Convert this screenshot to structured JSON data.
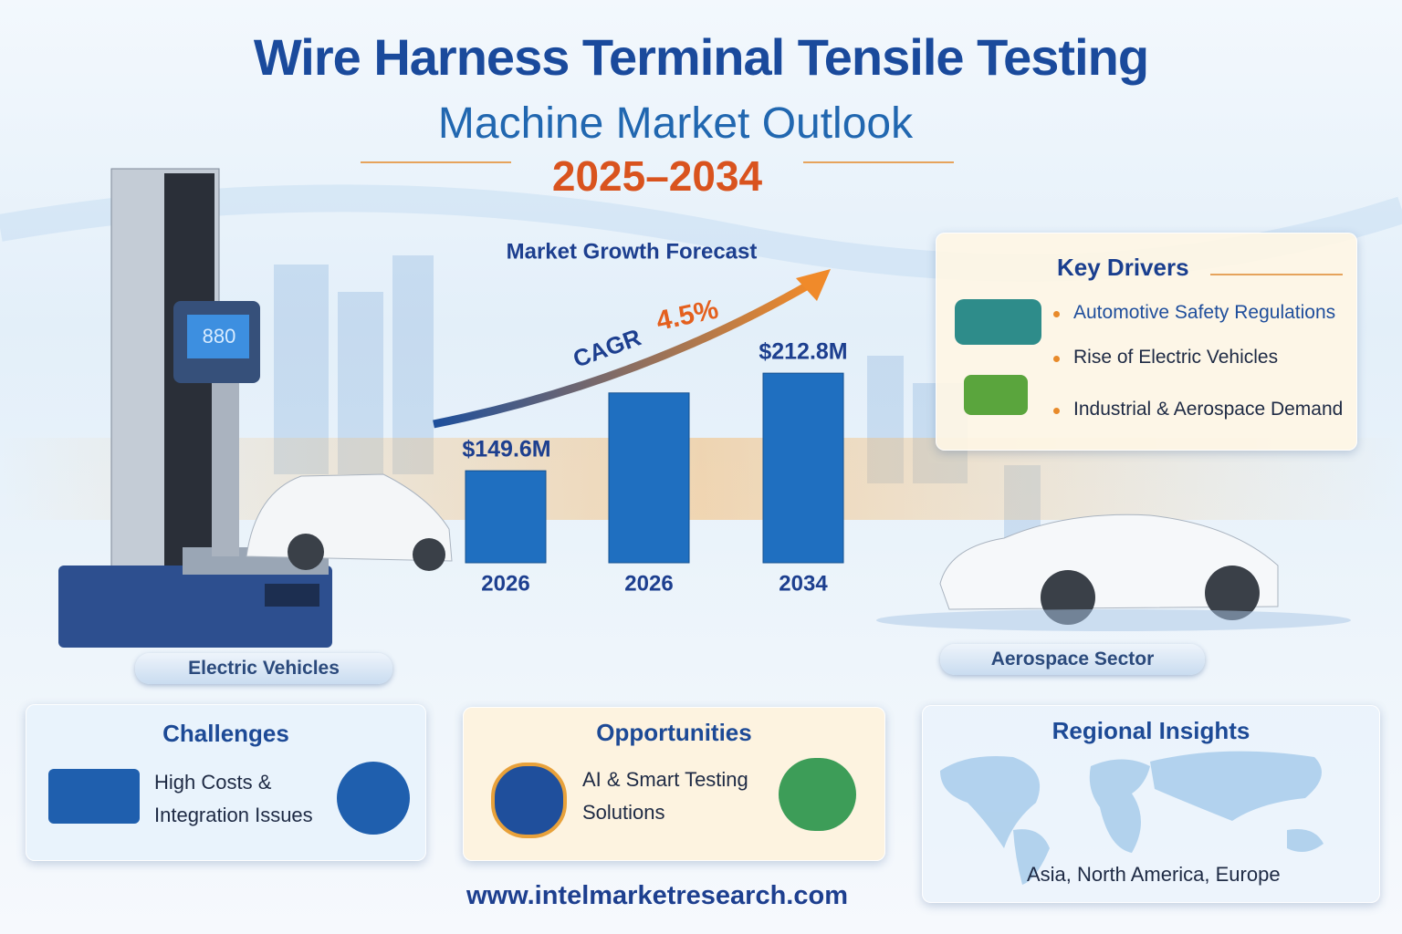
{
  "header": {
    "title_line1": "Wire Harness Terminal Tensile Testing",
    "title_line2": "Machine Market Outlook",
    "years": "2025–2034"
  },
  "machine_display": "880",
  "chart_data": {
    "type": "bar",
    "title": "Market Growth Forecast",
    "categories": [
      "2026",
      "2026",
      "2034"
    ],
    "values": [
      149.6,
      200,
      212.8
    ],
    "value_labels": [
      "$149.6M",
      null,
      "$212.8M"
    ],
    "color": "#1f6fc0",
    "ylim": [
      90,
      230
    ],
    "cagr_label": "CAGR",
    "cagr_value": "4.5%"
  },
  "scene_labels": [
    "Electric Vehicles",
    "Aerospace Sector"
  ],
  "key_drivers": {
    "title": "Key Drivers",
    "items": [
      "Automotive Safety Regulations",
      "Rise of Electric Vehicles",
      "Industrial & Aerospace Demand"
    ]
  },
  "challenges": {
    "title": "Challenges",
    "lines": [
      "High Costs &",
      "Integration Issues"
    ]
  },
  "opportunities": {
    "title": "Opportunities",
    "lines": [
      "AI & Smart Testing",
      "Solutions"
    ]
  },
  "regional": {
    "title": "Regional Insights",
    "text": "Asia, North America, Europe"
  },
  "footer": {
    "url": "www.intelmarketresearch.com"
  }
}
